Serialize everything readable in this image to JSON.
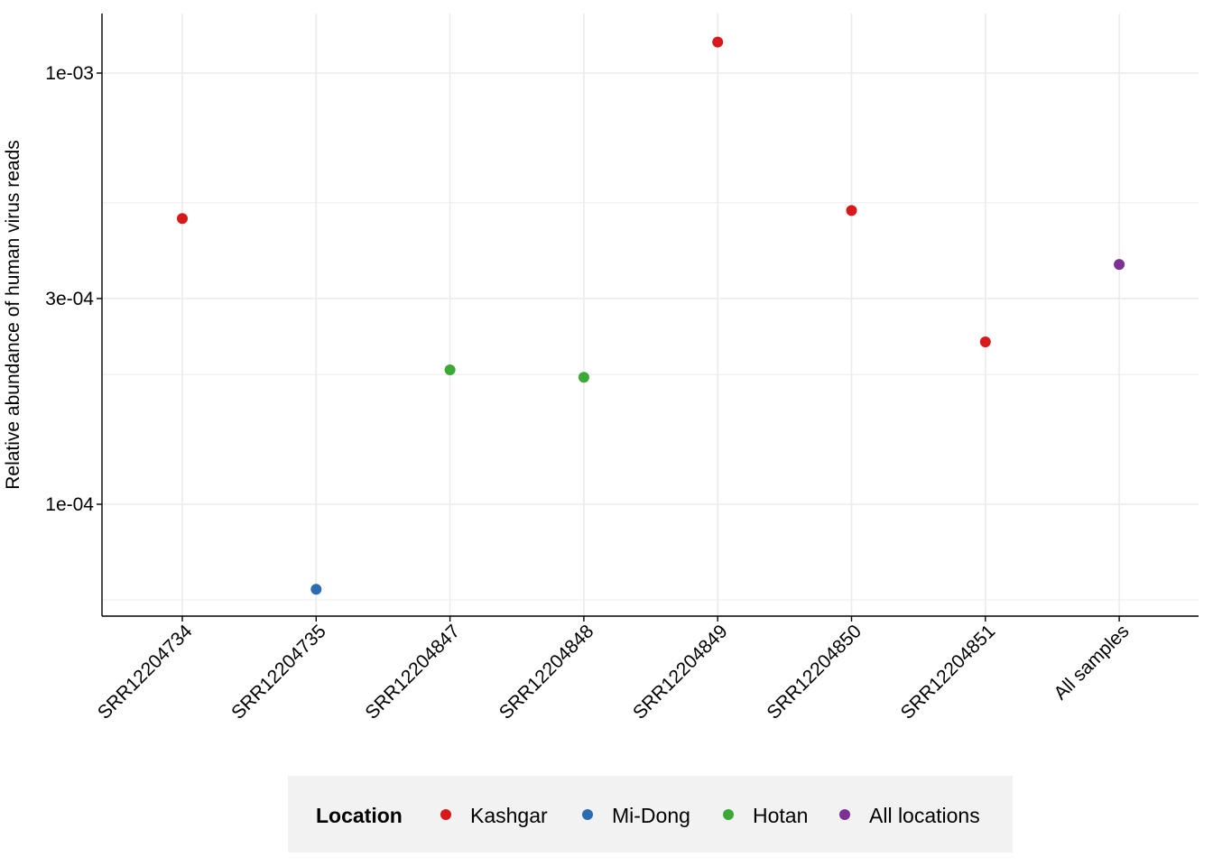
{
  "chart_data": {
    "type": "scatter",
    "ylabel": "Relative abundance of human virus reads",
    "xlabel": "",
    "y_scale": "log10",
    "ylim": [
      5.5e-05,
      0.00135
    ],
    "y_ticks": [
      0.0001,
      0.0003,
      0.001
    ],
    "y_tick_labels": [
      "1e-04",
      "3e-04",
      "1e-03"
    ],
    "y_minor_gridlines": [
      6e-05,
      0.0002,
      0.0005
    ],
    "grid": true,
    "categories": [
      "SRR12204734",
      "SRR12204735",
      "SRR12204847",
      "SRR12204848",
      "SRR12204849",
      "SRR12204850",
      "SRR12204851",
      "All samples"
    ],
    "points": [
      {
        "category": "SRR12204734",
        "value": 0.00046,
        "location": "Kashgar"
      },
      {
        "category": "SRR12204735",
        "value": 6.35e-05,
        "location": "Mi-Dong"
      },
      {
        "category": "SRR12204847",
        "value": 0.000205,
        "location": "Hotan"
      },
      {
        "category": "SRR12204848",
        "value": 0.000197,
        "location": "Hotan"
      },
      {
        "category": "SRR12204849",
        "value": 0.00118,
        "location": "Kashgar"
      },
      {
        "category": "SRR12204850",
        "value": 0.00048,
        "location": "Kashgar"
      },
      {
        "category": "SRR12204851",
        "value": 0.000238,
        "location": "Kashgar"
      },
      {
        "category": "All samples",
        "value": 0.00036,
        "location": "All locations"
      }
    ],
    "legend": {
      "title": "Location",
      "position": "bottom",
      "entries": [
        {
          "label": "Kashgar",
          "color": "#D7191C"
        },
        {
          "label": "Mi-Dong",
          "color": "#2C6DB2"
        },
        {
          "label": "Hotan",
          "color": "#3BA935"
        },
        {
          "label": "All locations",
          "color": "#7B3294"
        }
      ]
    }
  }
}
